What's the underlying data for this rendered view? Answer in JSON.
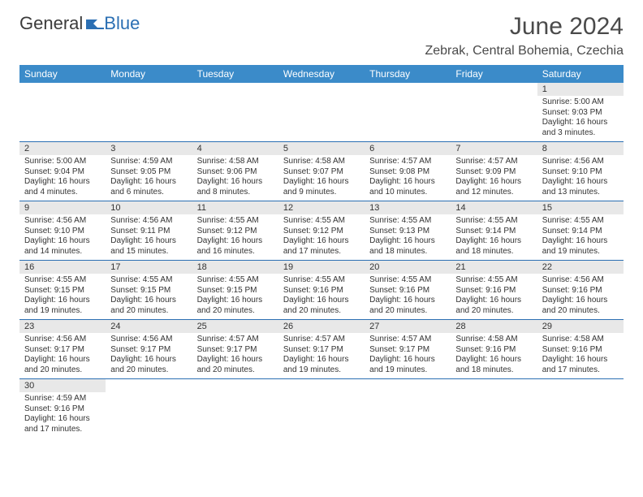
{
  "brand": {
    "part1": "General",
    "part2": "Blue"
  },
  "title": "June 2024",
  "location": "Zebrak, Central Bohemia, Czechia",
  "colors": {
    "header_bg": "#3b8bc9",
    "header_text": "#ffffff",
    "daynum_bg": "#e8e8e8",
    "border": "#2b6fb3",
    "text": "#333333",
    "brand_dark": "#3b3b3b",
    "brand_blue": "#2b6fb3"
  },
  "daynames": [
    "Sunday",
    "Monday",
    "Tuesday",
    "Wednesday",
    "Thursday",
    "Friday",
    "Saturday"
  ],
  "weeks": [
    [
      null,
      null,
      null,
      null,
      null,
      null,
      {
        "n": "1",
        "sr": "Sunrise: 5:00 AM",
        "ss": "Sunset: 9:03 PM",
        "d1": "Daylight: 16 hours",
        "d2": "and 3 minutes."
      }
    ],
    [
      {
        "n": "2",
        "sr": "Sunrise: 5:00 AM",
        "ss": "Sunset: 9:04 PM",
        "d1": "Daylight: 16 hours",
        "d2": "and 4 minutes."
      },
      {
        "n": "3",
        "sr": "Sunrise: 4:59 AM",
        "ss": "Sunset: 9:05 PM",
        "d1": "Daylight: 16 hours",
        "d2": "and 6 minutes."
      },
      {
        "n": "4",
        "sr": "Sunrise: 4:58 AM",
        "ss": "Sunset: 9:06 PM",
        "d1": "Daylight: 16 hours",
        "d2": "and 8 minutes."
      },
      {
        "n": "5",
        "sr": "Sunrise: 4:58 AM",
        "ss": "Sunset: 9:07 PM",
        "d1": "Daylight: 16 hours",
        "d2": "and 9 minutes."
      },
      {
        "n": "6",
        "sr": "Sunrise: 4:57 AM",
        "ss": "Sunset: 9:08 PM",
        "d1": "Daylight: 16 hours",
        "d2": "and 10 minutes."
      },
      {
        "n": "7",
        "sr": "Sunrise: 4:57 AM",
        "ss": "Sunset: 9:09 PM",
        "d1": "Daylight: 16 hours",
        "d2": "and 12 minutes."
      },
      {
        "n": "8",
        "sr": "Sunrise: 4:56 AM",
        "ss": "Sunset: 9:10 PM",
        "d1": "Daylight: 16 hours",
        "d2": "and 13 minutes."
      }
    ],
    [
      {
        "n": "9",
        "sr": "Sunrise: 4:56 AM",
        "ss": "Sunset: 9:10 PM",
        "d1": "Daylight: 16 hours",
        "d2": "and 14 minutes."
      },
      {
        "n": "10",
        "sr": "Sunrise: 4:56 AM",
        "ss": "Sunset: 9:11 PM",
        "d1": "Daylight: 16 hours",
        "d2": "and 15 minutes."
      },
      {
        "n": "11",
        "sr": "Sunrise: 4:55 AM",
        "ss": "Sunset: 9:12 PM",
        "d1": "Daylight: 16 hours",
        "d2": "and 16 minutes."
      },
      {
        "n": "12",
        "sr": "Sunrise: 4:55 AM",
        "ss": "Sunset: 9:12 PM",
        "d1": "Daylight: 16 hours",
        "d2": "and 17 minutes."
      },
      {
        "n": "13",
        "sr": "Sunrise: 4:55 AM",
        "ss": "Sunset: 9:13 PM",
        "d1": "Daylight: 16 hours",
        "d2": "and 18 minutes."
      },
      {
        "n": "14",
        "sr": "Sunrise: 4:55 AM",
        "ss": "Sunset: 9:14 PM",
        "d1": "Daylight: 16 hours",
        "d2": "and 18 minutes."
      },
      {
        "n": "15",
        "sr": "Sunrise: 4:55 AM",
        "ss": "Sunset: 9:14 PM",
        "d1": "Daylight: 16 hours",
        "d2": "and 19 minutes."
      }
    ],
    [
      {
        "n": "16",
        "sr": "Sunrise: 4:55 AM",
        "ss": "Sunset: 9:15 PM",
        "d1": "Daylight: 16 hours",
        "d2": "and 19 minutes."
      },
      {
        "n": "17",
        "sr": "Sunrise: 4:55 AM",
        "ss": "Sunset: 9:15 PM",
        "d1": "Daylight: 16 hours",
        "d2": "and 20 minutes."
      },
      {
        "n": "18",
        "sr": "Sunrise: 4:55 AM",
        "ss": "Sunset: 9:15 PM",
        "d1": "Daylight: 16 hours",
        "d2": "and 20 minutes."
      },
      {
        "n": "19",
        "sr": "Sunrise: 4:55 AM",
        "ss": "Sunset: 9:16 PM",
        "d1": "Daylight: 16 hours",
        "d2": "and 20 minutes."
      },
      {
        "n": "20",
        "sr": "Sunrise: 4:55 AM",
        "ss": "Sunset: 9:16 PM",
        "d1": "Daylight: 16 hours",
        "d2": "and 20 minutes."
      },
      {
        "n": "21",
        "sr": "Sunrise: 4:55 AM",
        "ss": "Sunset: 9:16 PM",
        "d1": "Daylight: 16 hours",
        "d2": "and 20 minutes."
      },
      {
        "n": "22",
        "sr": "Sunrise: 4:56 AM",
        "ss": "Sunset: 9:16 PM",
        "d1": "Daylight: 16 hours",
        "d2": "and 20 minutes."
      }
    ],
    [
      {
        "n": "23",
        "sr": "Sunrise: 4:56 AM",
        "ss": "Sunset: 9:17 PM",
        "d1": "Daylight: 16 hours",
        "d2": "and 20 minutes."
      },
      {
        "n": "24",
        "sr": "Sunrise: 4:56 AM",
        "ss": "Sunset: 9:17 PM",
        "d1": "Daylight: 16 hours",
        "d2": "and 20 minutes."
      },
      {
        "n": "25",
        "sr": "Sunrise: 4:57 AM",
        "ss": "Sunset: 9:17 PM",
        "d1": "Daylight: 16 hours",
        "d2": "and 20 minutes."
      },
      {
        "n": "26",
        "sr": "Sunrise: 4:57 AM",
        "ss": "Sunset: 9:17 PM",
        "d1": "Daylight: 16 hours",
        "d2": "and 19 minutes."
      },
      {
        "n": "27",
        "sr": "Sunrise: 4:57 AM",
        "ss": "Sunset: 9:17 PM",
        "d1": "Daylight: 16 hours",
        "d2": "and 19 minutes."
      },
      {
        "n": "28",
        "sr": "Sunrise: 4:58 AM",
        "ss": "Sunset: 9:16 PM",
        "d1": "Daylight: 16 hours",
        "d2": "and 18 minutes."
      },
      {
        "n": "29",
        "sr": "Sunrise: 4:58 AM",
        "ss": "Sunset: 9:16 PM",
        "d1": "Daylight: 16 hours",
        "d2": "and 17 minutes."
      }
    ],
    [
      {
        "n": "30",
        "sr": "Sunrise: 4:59 AM",
        "ss": "Sunset: 9:16 PM",
        "d1": "Daylight: 16 hours",
        "d2": "and 17 minutes."
      },
      null,
      null,
      null,
      null,
      null,
      null
    ]
  ]
}
